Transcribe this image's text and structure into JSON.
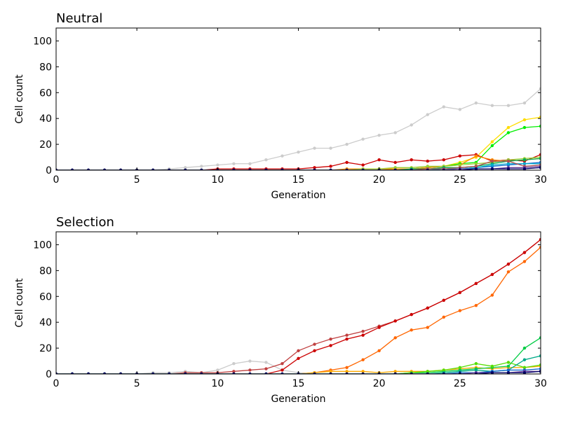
{
  "chart_data": [
    {
      "type": "line",
      "title": "Neutral",
      "xlabel": "Generation",
      "ylabel": "Cell count",
      "xlim": [
        0,
        30
      ],
      "ylim": [
        0,
        110
      ],
      "xticks": [
        0,
        5,
        10,
        15,
        20,
        25,
        30
      ],
      "yticks": [
        0,
        20,
        40,
        60,
        80,
        100
      ],
      "x": [
        0,
        1,
        2,
        3,
        4,
        5,
        6,
        7,
        8,
        9,
        10,
        11,
        12,
        13,
        14,
        15,
        16,
        17,
        18,
        19,
        20,
        21,
        22,
        23,
        24,
        25,
        26,
        27,
        28,
        29,
        30
      ],
      "series": [
        {
          "color": "#cccccc",
          "values": [
            0,
            0,
            0,
            0,
            0,
            0,
            0,
            1,
            2,
            3,
            4,
            5,
            5,
            8,
            11,
            14,
            17,
            17,
            20,
            24,
            27,
            29,
            35,
            43,
            49,
            47,
            52,
            50,
            50,
            52,
            63
          ]
        },
        {
          "color": "#ffdd00",
          "values": [
            0,
            0,
            0,
            0,
            0,
            0,
            0,
            0,
            0,
            0,
            0,
            0,
            0,
            0,
            0,
            0,
            0,
            0,
            0,
            0,
            0,
            1,
            1,
            2,
            3,
            6,
            10,
            22,
            33,
            39,
            41
          ]
        },
        {
          "color": "#00ee00",
          "values": [
            0,
            0,
            0,
            0,
            0,
            0,
            0,
            0,
            0,
            0,
            0,
            0,
            0,
            0,
            0,
            0,
            0,
            0,
            0,
            0,
            0,
            0,
            1,
            2,
            3,
            5,
            6,
            19,
            29,
            33,
            34
          ]
        },
        {
          "color": "#cc0000",
          "values": [
            0,
            0,
            0,
            0,
            0,
            0,
            0,
            0,
            0,
            0,
            1,
            1,
            1,
            1,
            1,
            1,
            2,
            3,
            6,
            4,
            8,
            6,
            8,
            7,
            8,
            11,
            12,
            7,
            8,
            7,
            12
          ]
        },
        {
          "color": "#ff8800",
          "values": [
            0,
            0,
            0,
            0,
            0,
            0,
            0,
            0,
            0,
            0,
            0,
            0,
            0,
            0,
            0,
            0,
            0,
            0,
            1,
            1,
            1,
            1,
            1,
            2,
            3,
            4,
            11,
            8,
            7,
            8,
            9
          ]
        },
        {
          "color": "#9acd32",
          "values": [
            0,
            0,
            0,
            0,
            0,
            0,
            0,
            0,
            0,
            0,
            0,
            0,
            0,
            0,
            0,
            0,
            0,
            0,
            0,
            1,
            1,
            2,
            2,
            3,
            3,
            4,
            5,
            6,
            8,
            9,
            10
          ]
        },
        {
          "color": "#00aa55",
          "values": [
            0,
            0,
            0,
            0,
            0,
            0,
            0,
            0,
            0,
            0,
            0,
            0,
            0,
            0,
            0,
            0,
            0,
            0,
            0,
            0,
            0,
            0,
            1,
            1,
            2,
            2,
            3,
            5,
            7,
            8,
            9
          ]
        },
        {
          "color": "#1166cc",
          "values": [
            0,
            0,
            0,
            0,
            0,
            0,
            0,
            0,
            0,
            0,
            0,
            0,
            0,
            0,
            0,
            0,
            0,
            0,
            0,
            0,
            0,
            0,
            0,
            0,
            1,
            1,
            2,
            3,
            4,
            5,
            6
          ]
        },
        {
          "color": "#00aacc",
          "values": [
            0,
            0,
            0,
            0,
            0,
            0,
            0,
            0,
            0,
            0,
            0,
            0,
            0,
            0,
            0,
            0,
            0,
            0,
            0,
            0,
            0,
            0,
            0,
            0,
            1,
            1,
            2,
            4,
            5,
            5,
            5
          ]
        },
        {
          "color": "#b05050",
          "values": [
            0,
            0,
            0,
            0,
            0,
            0,
            0,
            0,
            0,
            0,
            0,
            0,
            0,
            0,
            0,
            0,
            0,
            0,
            0,
            0,
            0,
            0,
            0,
            1,
            1,
            2,
            3,
            7,
            7,
            3,
            4
          ]
        },
        {
          "color": "#6a3d9a",
          "values": [
            0,
            0,
            0,
            0,
            0,
            0,
            0,
            0,
            0,
            0,
            0,
            0,
            0,
            0,
            0,
            0,
            0,
            0,
            0,
            0,
            0,
            0,
            0,
            0,
            0,
            1,
            1,
            1,
            2,
            2,
            3
          ]
        },
        {
          "color": "#000066",
          "values": [
            0,
            0,
            0,
            0,
            0,
            0,
            0,
            0,
            0,
            0,
            0,
            0,
            0,
            0,
            0,
            0,
            0,
            0,
            0,
            0,
            0,
            0,
            0,
            0,
            0,
            0,
            1,
            1,
            1,
            1,
            2
          ]
        }
      ]
    },
    {
      "type": "line",
      "title": "Selection",
      "xlabel": "Generation",
      "ylabel": "Cell count",
      "xlim": [
        0,
        30
      ],
      "ylim": [
        0,
        110
      ],
      "xticks": [
        0,
        5,
        10,
        15,
        20,
        25,
        30
      ],
      "yticks": [
        0,
        20,
        40,
        60,
        80,
        100
      ],
      "x": [
        0,
        1,
        2,
        3,
        4,
        5,
        6,
        7,
        8,
        9,
        10,
        11,
        12,
        13,
        14,
        15,
        16,
        17,
        18,
        19,
        20,
        21,
        22,
        23,
        24,
        25,
        26,
        27,
        28,
        29,
        30
      ],
      "series": [
        {
          "color": "#cccccc",
          "values": [
            0,
            0,
            0,
            0,
            0,
            0,
            1,
            1,
            2,
            1,
            3,
            8,
            10,
            9,
            3,
            1,
            0,
            0,
            0,
            0,
            0,
            0,
            0,
            0,
            0,
            0,
            0,
            0,
            0,
            0,
            0
          ]
        },
        {
          "color": "#c04040",
          "values": [
            0,
            0,
            0,
            0,
            0,
            0,
            0,
            0,
            1,
            1,
            1,
            2,
            3,
            4,
            8,
            18,
            23,
            27,
            30,
            33,
            37,
            41,
            46,
            51,
            57,
            63,
            70,
            77,
            85,
            94,
            104
          ]
        },
        {
          "color": "#cc0000",
          "values": [
            0,
            0,
            0,
            0,
            0,
            0,
            0,
            0,
            0,
            0,
            0,
            0,
            0,
            0,
            3,
            12,
            18,
            22,
            27,
            30,
            36,
            41,
            46,
            51,
            57,
            63,
            70,
            77,
            85,
            94,
            104
          ]
        },
        {
          "color": "#ff6600",
          "values": [
            0,
            0,
            0,
            0,
            0,
            0,
            0,
            0,
            0,
            0,
            0,
            0,
            0,
            0,
            0,
            0,
            1,
            3,
            5,
            11,
            18,
            28,
            34,
            36,
            44,
            49,
            53,
            61,
            79,
            87,
            98
          ]
        },
        {
          "color": "#ffaa00",
          "values": [
            0,
            0,
            0,
            0,
            0,
            0,
            0,
            0,
            0,
            0,
            0,
            0,
            0,
            0,
            0,
            0,
            1,
            2,
            2,
            2,
            1,
            2,
            2,
            2,
            3,
            4,
            5,
            4,
            5,
            5,
            6
          ]
        },
        {
          "color": "#00cc44",
          "values": [
            0,
            0,
            0,
            0,
            0,
            0,
            0,
            0,
            0,
            0,
            0,
            0,
            0,
            0,
            0,
            0,
            0,
            0,
            0,
            0,
            0,
            0,
            1,
            1,
            2,
            3,
            4,
            5,
            6,
            20,
            28
          ]
        },
        {
          "color": "#55dd00",
          "values": [
            0,
            0,
            0,
            0,
            0,
            0,
            0,
            0,
            0,
            0,
            0,
            0,
            0,
            0,
            0,
            0,
            0,
            0,
            0,
            0,
            0,
            0,
            1,
            2,
            3,
            5,
            8,
            6,
            9,
            5,
            7
          ]
        },
        {
          "color": "#00aa88",
          "values": [
            0,
            0,
            0,
            0,
            0,
            0,
            0,
            0,
            0,
            0,
            0,
            0,
            0,
            0,
            0,
            0,
            0,
            0,
            0,
            0,
            0,
            0,
            0,
            0,
            1,
            2,
            3,
            2,
            3,
            11,
            14
          ]
        },
        {
          "color": "#1166cc",
          "values": [
            0,
            0,
            0,
            0,
            0,
            0,
            0,
            0,
            0,
            0,
            0,
            0,
            0,
            0,
            0,
            0,
            0,
            0,
            0,
            0,
            0,
            0,
            0,
            0,
            0,
            1,
            1,
            2,
            3,
            3,
            4
          ]
        },
        {
          "color": "#6a3d9a",
          "values": [
            0,
            0,
            0,
            0,
            0,
            0,
            0,
            0,
            0,
            0,
            0,
            0,
            0,
            0,
            0,
            0,
            0,
            0,
            0,
            0,
            0,
            0,
            0,
            0,
            0,
            0,
            1,
            1,
            1,
            2,
            2
          ]
        },
        {
          "color": "#000066",
          "values": [
            0,
            0,
            0,
            0,
            0,
            0,
            0,
            0,
            0,
            0,
            0,
            0,
            0,
            0,
            0,
            0,
            0,
            0,
            0,
            0,
            0,
            0,
            0,
            0,
            0,
            0,
            0,
            1,
            1,
            1,
            2
          ]
        }
      ]
    }
  ]
}
